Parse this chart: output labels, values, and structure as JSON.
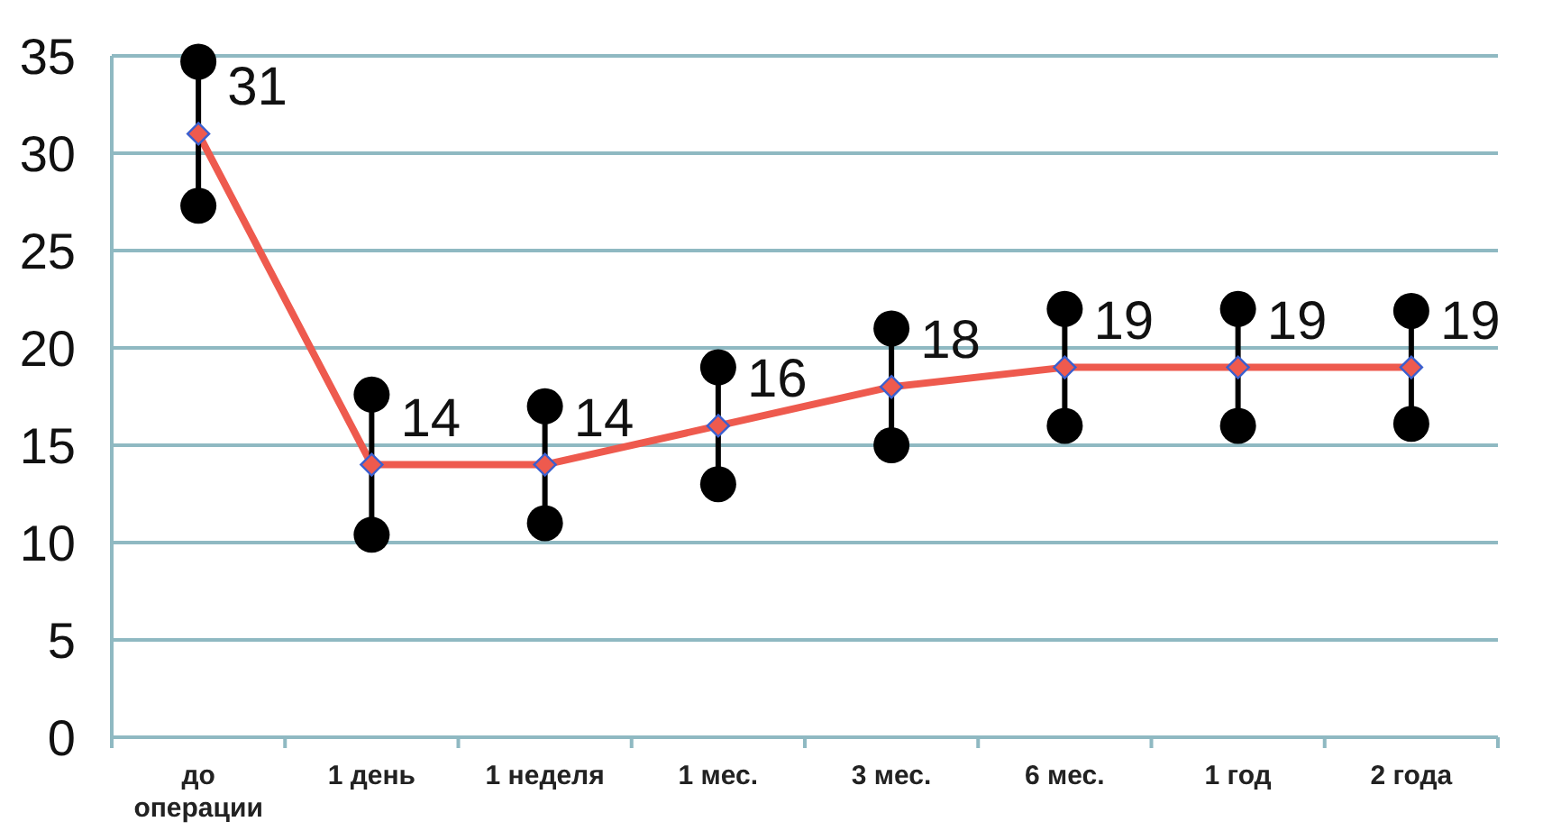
{
  "chart_data": {
    "type": "line",
    "categories": [
      "до операции",
      "1 день",
      "1 неделя",
      "1 мес.",
      "3 мес.",
      "6 мес.",
      "1 год",
      "2 года"
    ],
    "series": [
      {
        "color": "#ee5a4e",
        "values": [
          31,
          14,
          14,
          16,
          18,
          19,
          19,
          19
        ],
        "errors": [
          3.7,
          3.6,
          3,
          3,
          3,
          3,
          3,
          2.9
        ]
      }
    ],
    "ylim": [
      0,
      35
    ],
    "yticks": [
      0,
      5,
      10,
      15,
      20,
      25,
      30,
      35
    ],
    "grid": "y",
    "data_labels": true,
    "marker": "diamond",
    "line_style": "solid"
  }
}
